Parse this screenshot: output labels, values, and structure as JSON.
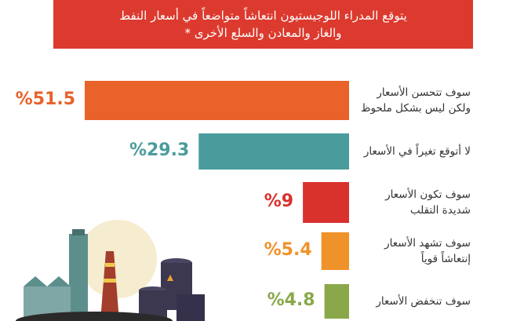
{
  "chart_data": {
    "type": "bar",
    "orientation": "horizontal",
    "title": "يتوقع المدراء اللوجيستيون انتعاشاً متواضعاً في أسعار النفط\nوالغاز والمعادن والسلع الأخرى *",
    "categories": [
      "سوف تتحسن الأسعار\nولكن ليس بشكل ملحوظ",
      "لا أتوقع تغيراً في الأسعار",
      "سوف تكون الأسعار\nشديدة التقلب",
      "سوف تشهد الأسعار\nإنتعاشاً قوياً",
      "سوف تنخفض الأسعار"
    ],
    "values": [
      51.5,
      29.3,
      9,
      5.4,
      4.8
    ],
    "value_labels": [
      "%51.5",
      "%29.3",
      "%9",
      "%5.4",
      "%4.8"
    ],
    "colors": [
      "#e8622a",
      "#4a9c9c",
      "#d9312c",
      "#f0922a",
      "#8aa84a"
    ]
  }
}
